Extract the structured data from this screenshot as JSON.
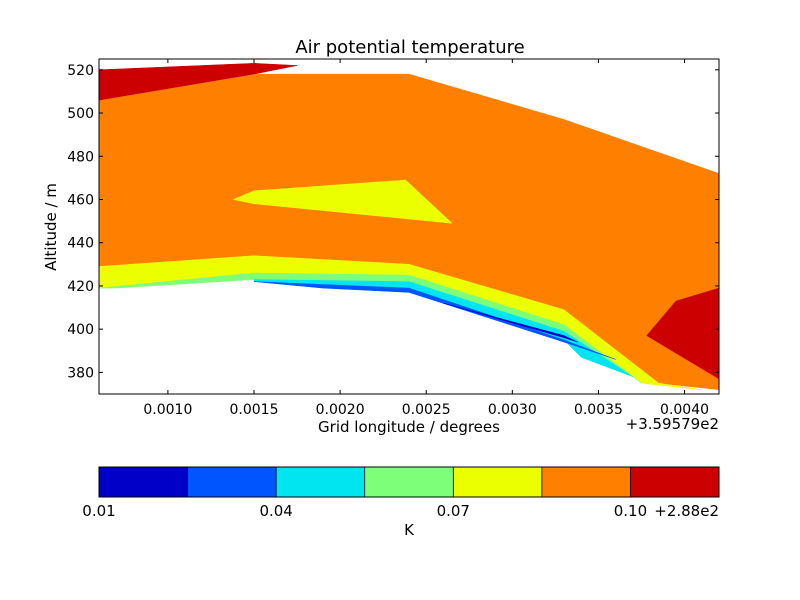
{
  "chart_data": {
    "type": "contourf",
    "title": "Air potential temperature",
    "xlabel": "Grid longitude / degrees",
    "ylabel": "Altitude / m",
    "x_offset_label": "+3.59579e2",
    "xlim": [
      0.0006,
      0.0042
    ],
    "ylim": [
      370,
      525
    ],
    "x_ticks": [
      0.001,
      0.0015,
      0.002,
      0.0025,
      0.003,
      0.0035,
      0.004
    ],
    "x_tick_labels": [
      "0.0010",
      "0.0015",
      "0.0020",
      "0.0025",
      "0.0030",
      "0.0035",
      "0.0040"
    ],
    "y_ticks": [
      380,
      400,
      420,
      440,
      460,
      480,
      500,
      520
    ],
    "y_tick_labels": [
      "380",
      "400",
      "420",
      "440",
      "460",
      "480",
      "500",
      "520"
    ],
    "grid": false,
    "regions": [
      {
        "level": "0.075-0.09",
        "color": "#ff7f00",
        "points": [
          [
            0.0006,
            506
          ],
          [
            0.00152,
            518
          ],
          [
            0.0024,
            518
          ],
          [
            0.0033,
            497
          ],
          [
            0.0042,
            472
          ],
          [
            0.0042,
            372
          ],
          [
            0.00385,
            375
          ],
          [
            0.0033,
            407
          ],
          [
            0.0024,
            430
          ],
          [
            0.0015,
            434
          ],
          [
            0.0006,
            429
          ]
        ]
      },
      {
        "level": "0.09-0.105",
        "color": "#cc0000",
        "points": [
          [
            0.0006,
            520
          ],
          [
            0.0015,
            523
          ],
          [
            0.00175,
            522
          ],
          [
            0.0015,
            518
          ],
          [
            0.0006,
            506
          ]
        ]
      },
      {
        "level": "0.09-0.105",
        "color": "#cc0000",
        "points": [
          [
            0.0042,
            419
          ],
          [
            0.00395,
            413
          ],
          [
            0.00378,
            397
          ],
          [
            0.0042,
            377
          ]
        ]
      },
      {
        "level": "0.06-0.075",
        "color": "#ecff00",
        "points": [
          [
            0.0006,
            429
          ],
          [
            0.0015,
            434
          ],
          [
            0.0024,
            430
          ],
          [
            0.0033,
            409
          ],
          [
            0.00385,
            375
          ],
          [
            0.0041,
            372
          ],
          [
            0.00375,
            375
          ],
          [
            0.0033,
            402
          ],
          [
            0.0024,
            425
          ],
          [
            0.0015,
            426
          ],
          [
            0.0006,
            419
          ]
        ]
      },
      {
        "level": "0.06-0.075",
        "color": "#ecff00",
        "points": [
          [
            0.00138,
            460
          ],
          [
            0.0015,
            464
          ],
          [
            0.00238,
            469
          ],
          [
            0.00265,
            449
          ],
          [
            0.0015,
            458
          ]
        ]
      },
      {
        "level": "0.045-0.06",
        "color": "#7dff7a",
        "points": [
          [
            0.0006,
            419
          ],
          [
            0.0015,
            426
          ],
          [
            0.0024,
            425
          ],
          [
            0.0033,
            402
          ],
          [
            0.00375,
            375
          ],
          [
            0.0037,
            378
          ],
          [
            0.0033,
            399
          ],
          [
            0.0024,
            422
          ],
          [
            0.0015,
            423
          ],
          [
            0.0007,
            419
          ]
        ]
      },
      {
        "level": "0.03-0.045",
        "color": "#00e5ef",
        "points": [
          [
            0.0015,
            423
          ],
          [
            0.0024,
            422
          ],
          [
            0.0033,
            399
          ],
          [
            0.0037,
            378
          ],
          [
            0.0034,
            387
          ],
          [
            0.0033,
            395
          ],
          [
            0.0024,
            419
          ],
          [
            0.0015,
            422
          ]
        ]
      },
      {
        "level": "0.015-0.03",
        "color": "#0055ff",
        "points": [
          [
            0.0015,
            422
          ],
          [
            0.0024,
            419
          ],
          [
            0.0033,
            395
          ],
          [
            0.0036,
            386
          ],
          [
            0.0033,
            394
          ],
          [
            0.0024,
            417
          ],
          [
            0.0019,
            419
          ]
        ]
      },
      {
        "level": "0.0-0.015",
        "color": "#0000c8",
        "points": [
          [
            0.0026,
            412
          ],
          [
            0.0033,
            397
          ],
          [
            0.00338,
            394
          ],
          [
            0.0033,
            396
          ]
        ]
      }
    ],
    "colorbar": {
      "label": "K",
      "offset_label": "+2.88e2",
      "tick_labels": [
        "0.01",
        "0.04",
        "0.07",
        "0.10"
      ],
      "colors": [
        "#0000c8",
        "#0055ff",
        "#00e5ef",
        "#7dff7a",
        "#ecff00",
        "#ff7f00",
        "#cc0000"
      ]
    }
  }
}
